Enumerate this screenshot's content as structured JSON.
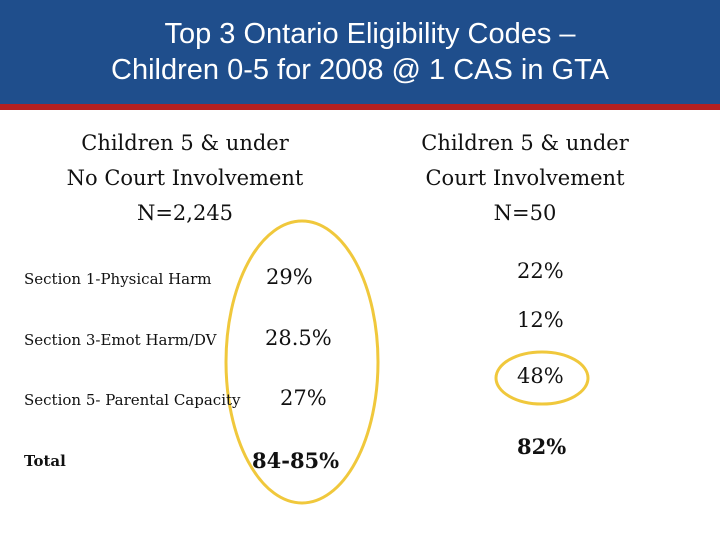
{
  "slide": {
    "title_line1": "Top 3 Ontario Eligibility Codes –",
    "title_line2": "Children 0-5 for 2008 @ 1 CAS in GTA",
    "colors": {
      "header_bg": "#1f4e8c",
      "header_stripe": "#b32020",
      "highlight": "#f0c83c"
    }
  },
  "columns": {
    "left": {
      "line1": "Children 5 & under",
      "line2": "No Court Involvement",
      "line3": "N=2,245"
    },
    "right": {
      "line1": "Children 5 & under",
      "line2": "Court Involvement",
      "line3": "N=50"
    }
  },
  "rows": [
    {
      "label": "Section 1-Physical Harm",
      "left": "29%",
      "right": "22%"
    },
    {
      "label": "Section 3-Emot Harm/DV",
      "left": "28.5%",
      "right": "12%"
    },
    {
      "label": "Section 5- Parental Capacity",
      "left": "27%",
      "right": "48%"
    },
    {
      "label": "Total",
      "left": "84-85%",
      "right": "82%"
    }
  ]
}
